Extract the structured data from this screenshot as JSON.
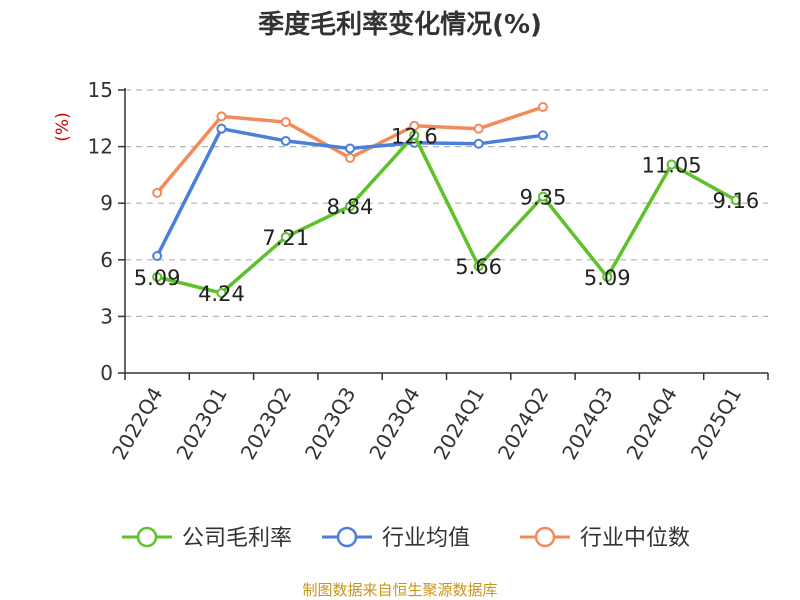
{
  "chart_data": {
    "type": "line",
    "title": "季度毛利率变化情况(%)",
    "ylabel": "(%)",
    "ylim": [
      0,
      15
    ],
    "yticks": [
      0,
      3,
      6,
      9,
      12,
      15
    ],
    "grid": true,
    "legend_position": "bottom",
    "categories": [
      "2022Q4",
      "2023Q1",
      "2023Q2",
      "2023Q3",
      "2023Q4",
      "2024Q1",
      "2024Q2",
      "2024Q3",
      "2024Q4",
      "2025Q1"
    ],
    "series": [
      {
        "name": "公司毛利率",
        "color": "#5dc12a",
        "values": [
          5.09,
          4.24,
          7.21,
          8.84,
          12.6,
          5.66,
          9.35,
          5.09,
          11.05,
          9.16
        ],
        "data_labels": [
          "5.09",
          "4.24",
          "7.21",
          "8.84",
          "12.6",
          "5.66",
          "9.35",
          "5.09",
          "11.05",
          "9.16"
        ]
      },
      {
        "name": "行业均值",
        "color": "#4a7fdc",
        "values": [
          6.2,
          12.95,
          12.3,
          11.9,
          12.2,
          12.15,
          12.6,
          null,
          null,
          null
        ]
      },
      {
        "name": "行业中位数",
        "color": "#f4895a",
        "values": [
          9.55,
          13.6,
          13.3,
          11.4,
          13.1,
          12.95,
          14.1,
          null,
          null,
          null
        ]
      }
    ]
  },
  "source_text": "制图数据来自恒生聚源数据库"
}
